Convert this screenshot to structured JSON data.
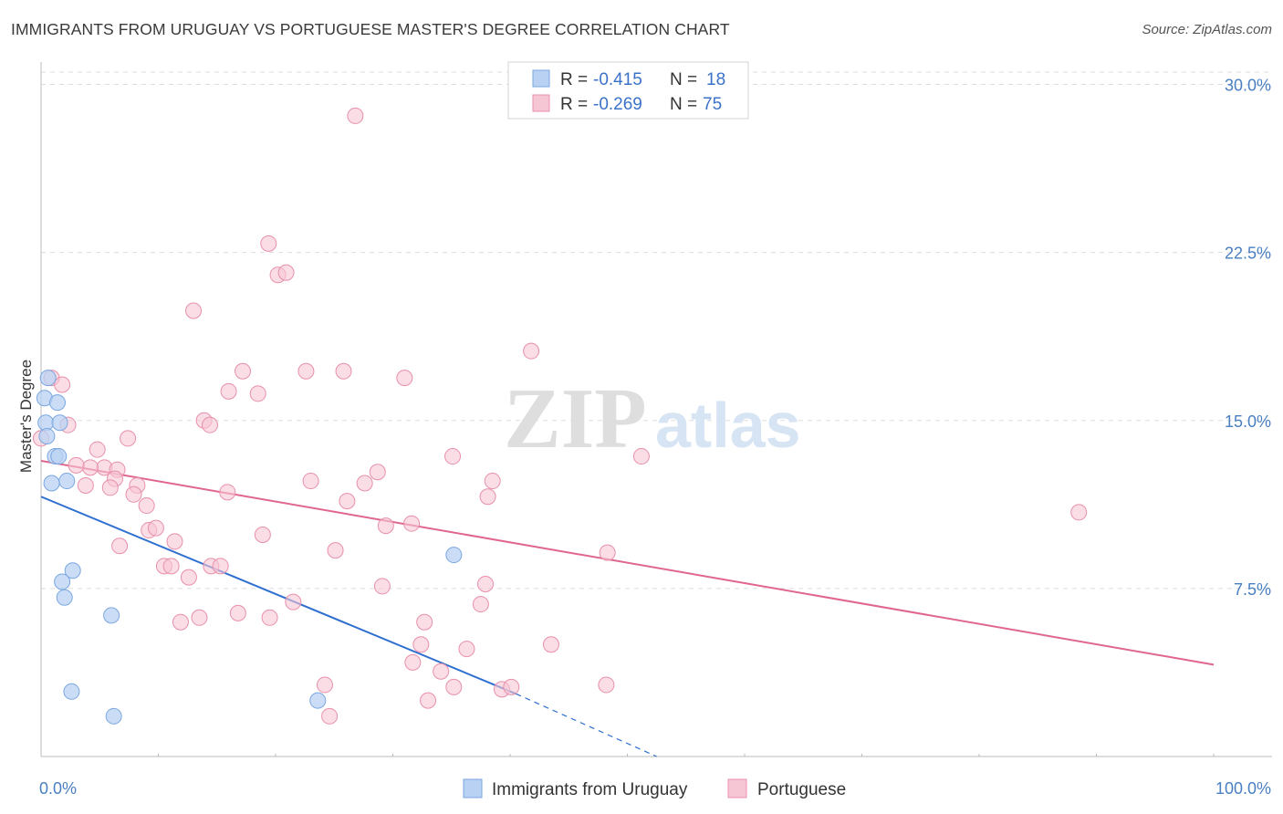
{
  "title": "IMMIGRANTS FROM URUGUAY VS PORTUGUESE MASTER'S DEGREE CORRELATION CHART",
  "source": "Source: ZipAtlas.com",
  "watermark": {
    "zip": "ZIP",
    "atlas": "atlas"
  },
  "colors": {
    "blue_fill": "#b9d2f3",
    "blue_stroke": "#7aa7e0",
    "blue_line": "#2f6fd0",
    "pink_fill": "#f7c6d4",
    "pink_stroke": "#e890ab",
    "pink_line": "#e06690",
    "tick": "#4a7fc1",
    "grid": "#dddddd"
  },
  "legend": {
    "rows": [
      {
        "r_label": "R =",
        "r_value": "-0.415",
        "n_label": "N =",
        "n_value": "18"
      },
      {
        "r_label": "R =",
        "r_value": "-0.269",
        "n_label": "N =",
        "n_value": "75"
      }
    ]
  },
  "chart_data": {
    "type": "scatter",
    "title": "IMMIGRANTS FROM URUGUAY VS PORTUGUESE MASTER'S DEGREE CORRELATION CHART",
    "xlabel": "",
    "ylabel": "Master's Degree",
    "xlim": [
      0,
      100
    ],
    "ylim": [
      0,
      31
    ],
    "x_tick_labels": [
      "0.0%",
      "100.0%"
    ],
    "y_ticks": [
      7.5,
      15.0,
      22.5,
      30.0
    ],
    "y_tick_labels": [
      "7.5%",
      "15.0%",
      "22.5%",
      "30.0%"
    ],
    "grid": true,
    "series": [
      {
        "name": "Immigrants from Uruguay",
        "r": -0.415,
        "n": 18,
        "points": [
          [
            0.6,
            16.9
          ],
          [
            0.3,
            16.0
          ],
          [
            1.4,
            15.8
          ],
          [
            0.4,
            14.9
          ],
          [
            1.6,
            14.9
          ],
          [
            0.5,
            14.3
          ],
          [
            1.2,
            13.4
          ],
          [
            1.5,
            13.4
          ],
          [
            0.9,
            12.2
          ],
          [
            2.2,
            12.3
          ],
          [
            2.7,
            8.3
          ],
          [
            1.8,
            7.8
          ],
          [
            2.0,
            7.1
          ],
          [
            6.0,
            6.3
          ],
          [
            2.6,
            2.9
          ],
          [
            6.2,
            1.8
          ],
          [
            35.2,
            9.0
          ],
          [
            23.6,
            2.5
          ]
        ],
        "trend": {
          "x0": 0.0,
          "y0": 11.6,
          "x1": 40.5,
          "y1": 2.8,
          "dash_x1": 52.5,
          "dash_y1": 0.0
        }
      },
      {
        "name": "Portuguese",
        "r": -0.269,
        "n": 75,
        "points": [
          [
            26.8,
            28.6
          ],
          [
            19.4,
            22.9
          ],
          [
            20.2,
            21.5
          ],
          [
            20.9,
            21.6
          ],
          [
            13.0,
            19.9
          ],
          [
            41.8,
            18.1
          ],
          [
            0.9,
            16.9
          ],
          [
            1.8,
            16.6
          ],
          [
            17.2,
            17.2
          ],
          [
            22.6,
            17.2
          ],
          [
            25.8,
            17.2
          ],
          [
            31.0,
            16.9
          ],
          [
            16.0,
            16.3
          ],
          [
            18.5,
            16.2
          ],
          [
            13.9,
            15.0
          ],
          [
            14.4,
            14.8
          ],
          [
            2.3,
            14.8
          ],
          [
            7.4,
            14.2
          ],
          [
            0.0,
            14.2
          ],
          [
            4.8,
            13.7
          ],
          [
            5.4,
            12.9
          ],
          [
            4.2,
            12.9
          ],
          [
            3.0,
            13.0
          ],
          [
            6.5,
            12.8
          ],
          [
            6.3,
            12.4
          ],
          [
            3.8,
            12.1
          ],
          [
            5.9,
            12.0
          ],
          [
            8.2,
            12.1
          ],
          [
            35.1,
            13.4
          ],
          [
            51.2,
            13.4
          ],
          [
            23.0,
            12.3
          ],
          [
            28.7,
            12.7
          ],
          [
            27.6,
            12.2
          ],
          [
            38.5,
            12.3
          ],
          [
            15.9,
            11.8
          ],
          [
            7.9,
            11.7
          ],
          [
            9.0,
            11.2
          ],
          [
            26.1,
            11.4
          ],
          [
            38.1,
            11.6
          ],
          [
            9.2,
            10.1
          ],
          [
            9.8,
            10.2
          ],
          [
            29.4,
            10.3
          ],
          [
            31.6,
            10.4
          ],
          [
            11.4,
            9.6
          ],
          [
            18.9,
            9.9
          ],
          [
            6.7,
            9.4
          ],
          [
            25.1,
            9.2
          ],
          [
            48.3,
            9.1
          ],
          [
            10.5,
            8.5
          ],
          [
            11.1,
            8.5
          ],
          [
            12.6,
            8.0
          ],
          [
            14.5,
            8.5
          ],
          [
            15.3,
            8.5
          ],
          [
            29.1,
            7.6
          ],
          [
            37.9,
            7.7
          ],
          [
            21.5,
            6.9
          ],
          [
            37.5,
            6.8
          ],
          [
            11.9,
            6.0
          ],
          [
            13.5,
            6.2
          ],
          [
            16.8,
            6.4
          ],
          [
            19.5,
            6.2
          ],
          [
            32.7,
            6.0
          ],
          [
            32.4,
            5.0
          ],
          [
            36.3,
            4.8
          ],
          [
            43.5,
            5.0
          ],
          [
            31.7,
            4.2
          ],
          [
            34.1,
            3.8
          ],
          [
            24.2,
            3.2
          ],
          [
            35.2,
            3.1
          ],
          [
            39.3,
            3.0
          ],
          [
            48.2,
            3.2
          ],
          [
            33.0,
            2.5
          ],
          [
            24.6,
            1.8
          ],
          [
            88.5,
            10.9
          ],
          [
            40.1,
            3.1
          ]
        ],
        "trend": {
          "x0": 0.0,
          "y0": 13.2,
          "x1": 100.0,
          "y1": 4.1
        }
      }
    ],
    "legend_entries": [
      "Immigrants from Uruguay",
      "Portuguese"
    ]
  }
}
